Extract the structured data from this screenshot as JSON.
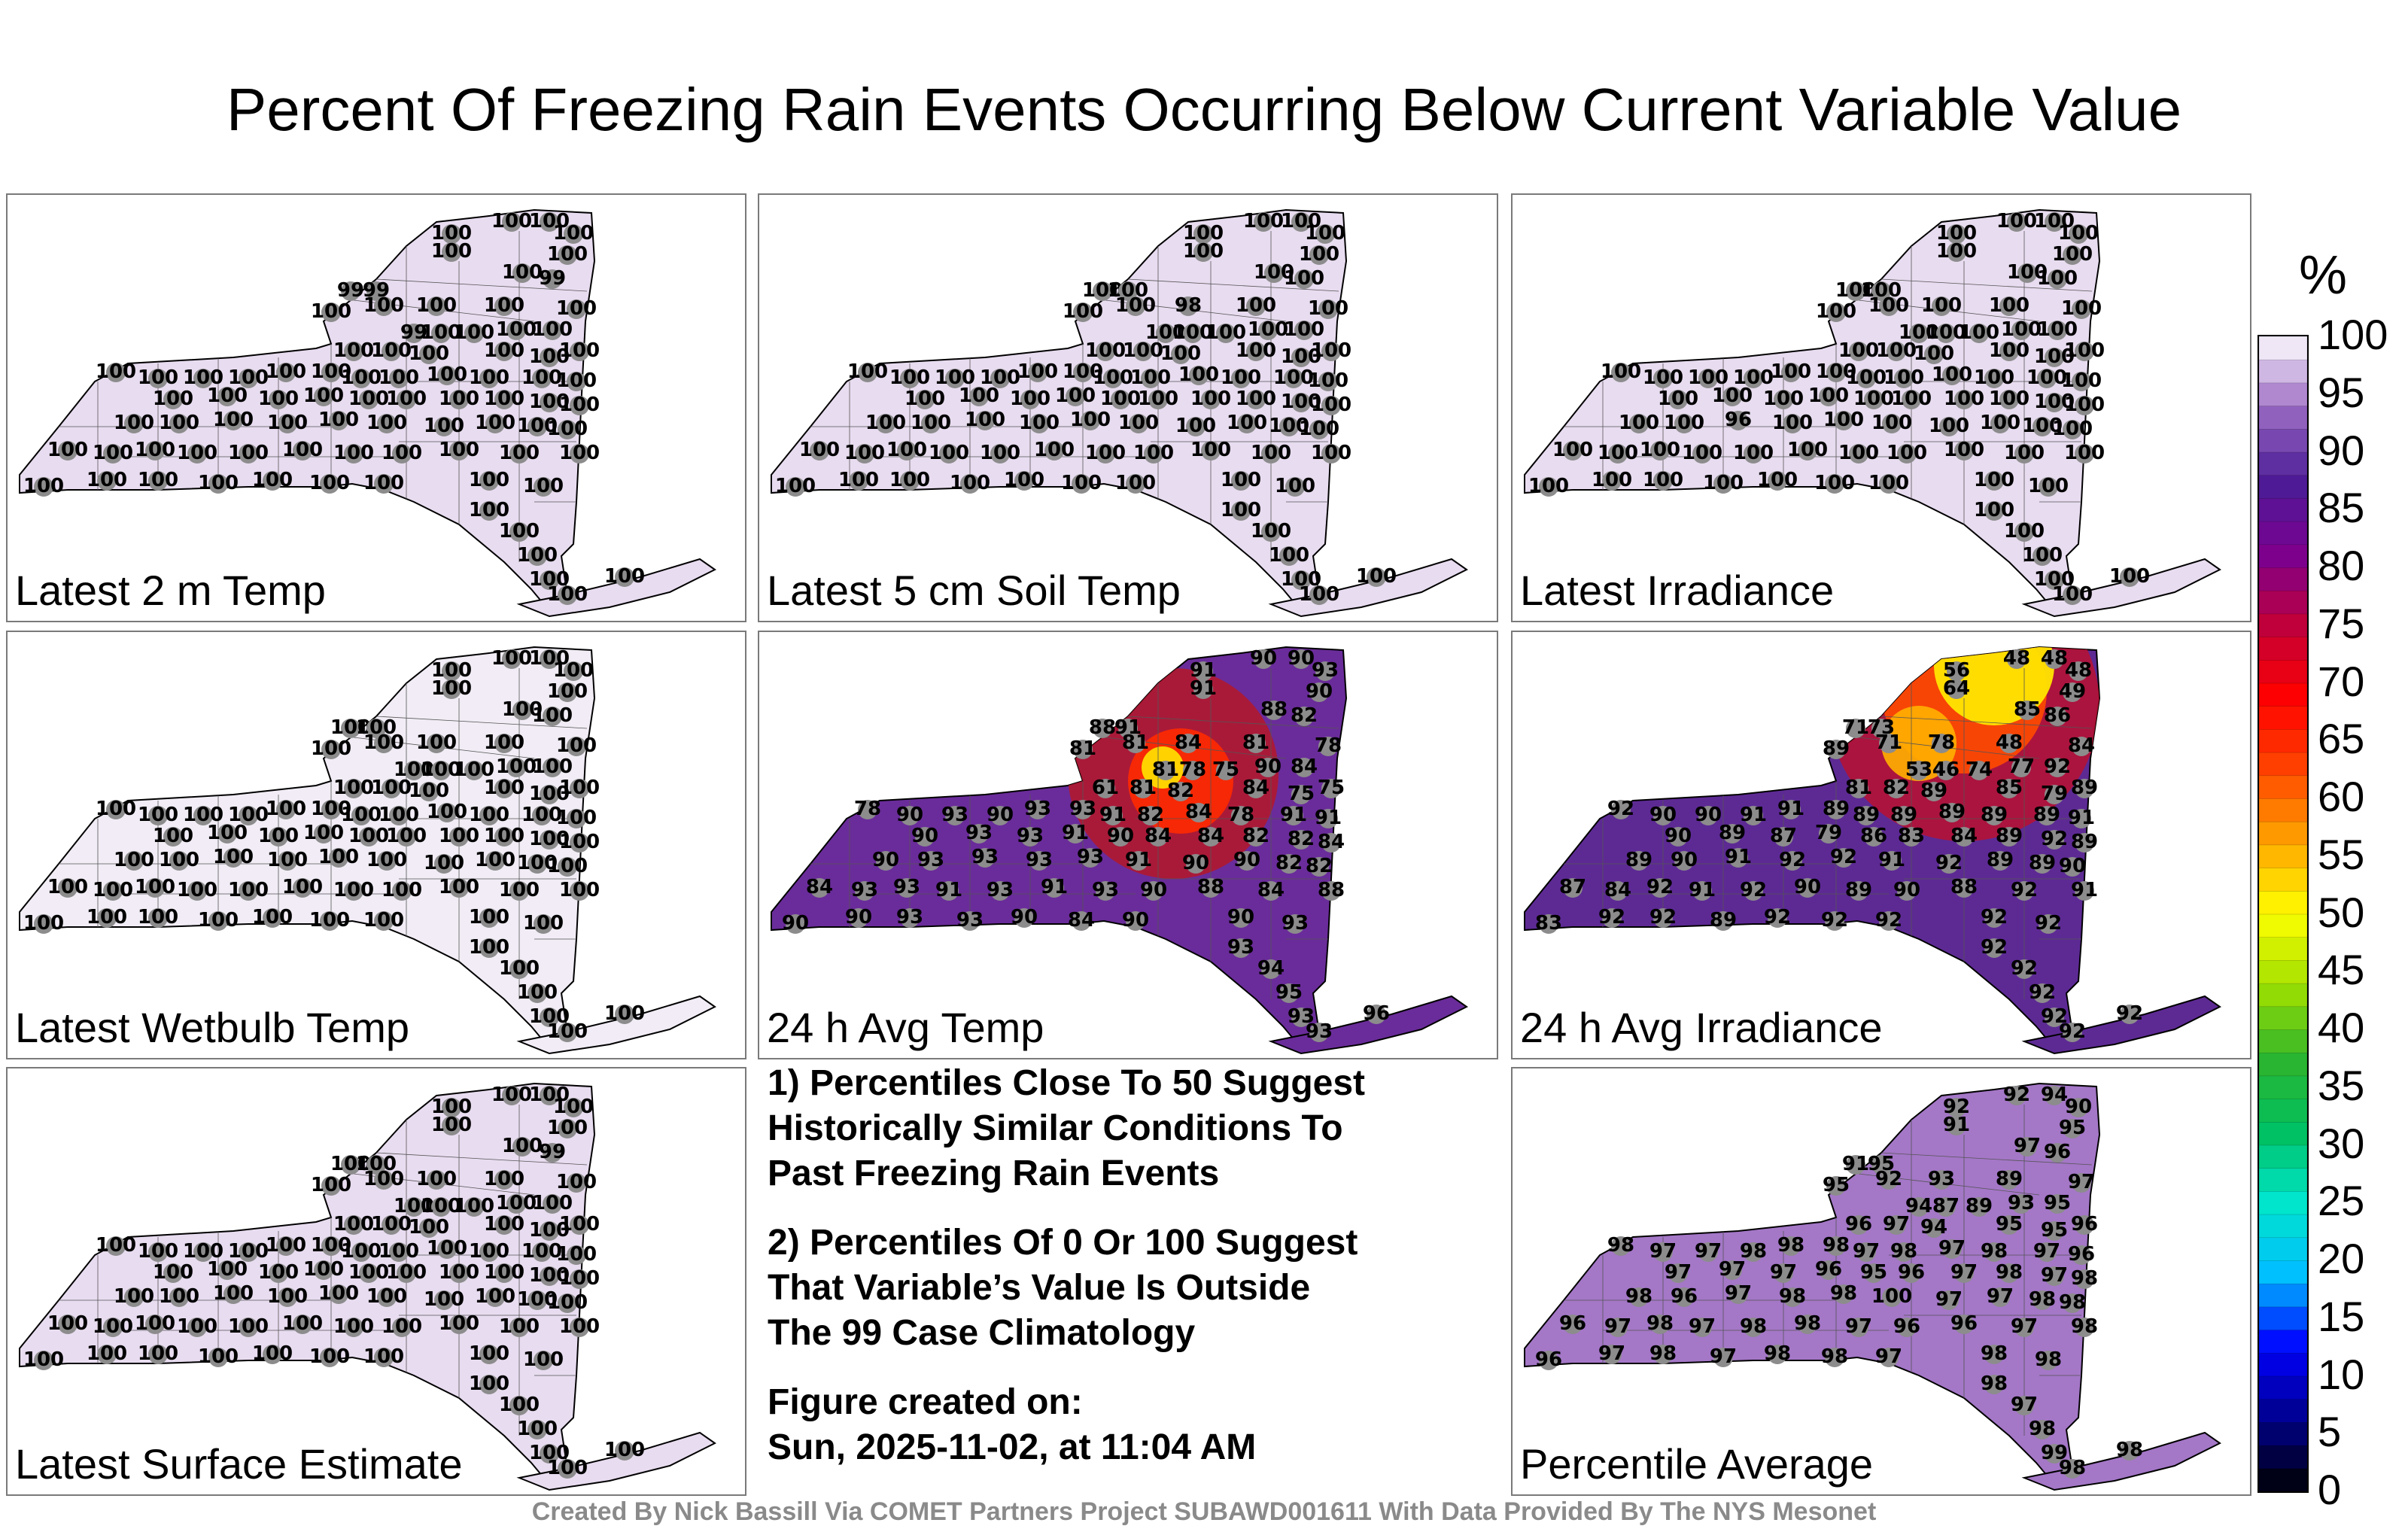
{
  "title": "Percent Of Freezing Rain Events Occurring Below Current Variable Value",
  "panels": [
    {
      "label": "Latest 2 m Temp",
      "fill": "#e8dcf0",
      "stations": [
        "100",
        "100",
        "100",
        "100",
        "100",
        "100",
        "99",
        "99",
        "100",
        "99",
        "100",
        "100",
        "100",
        "100",
        "99",
        "100",
        "100",
        "100",
        "100",
        "100",
        "100",
        "100",
        "100",
        "100",
        "100",
        "100",
        "100",
        "100",
        "100",
        "100",
        "100",
        "100",
        "100",
        "100",
        "100",
        "100",
        "100",
        "100",
        "100",
        "100",
        "100",
        "100",
        "100",
        "100",
        "100",
        "100",
        "100",
        "100",
        "100",
        "100",
        "100",
        "100",
        "100",
        "100",
        "100",
        "100",
        "100",
        "100",
        "100",
        "100",
        "100",
        "100",
        "100",
        "100",
        "100",
        "100",
        "100",
        "100",
        "100",
        "100",
        "100",
        "100",
        "100",
        "100",
        "100",
        "100",
        "100",
        "100",
        "100",
        "100",
        "100",
        "100",
        "100",
        "100"
      ]
    },
    {
      "label": "Latest 5 cm Soil Temp",
      "fill": "#e8dcf0",
      "stations": [
        "100",
        "100",
        "100",
        "100",
        "100",
        "100",
        "100",
        "100",
        "100",
        "100",
        "100",
        "100",
        "98",
        "100",
        "100",
        "100",
        "100",
        "100",
        "100",
        "100",
        "100",
        "100",
        "100",
        "100",
        "100",
        "100",
        "100",
        "100",
        "100",
        "100",
        "100",
        "100",
        "100",
        "100",
        "100",
        "100",
        "100",
        "100",
        "100",
        "100",
        "100",
        "100",
        "100",
        "100",
        "100",
        "100",
        "100",
        "100",
        "100",
        "100",
        "100",
        "100",
        "100",
        "100",
        "100",
        "100",
        "100",
        "100",
        "100",
        "100",
        "100",
        "100",
        "100",
        "100",
        "100",
        "100",
        "100",
        "100",
        "100",
        "100",
        "100",
        "100",
        "100",
        "100",
        "100",
        "100",
        "100",
        "100",
        "100",
        "100",
        "100",
        "100",
        "100",
        "100"
      ]
    },
    {
      "label": "Latest Irradiance",
      "fill": "#e8dcf0",
      "stations": [
        "100",
        "100",
        "100",
        "100",
        "100",
        "100",
        "100",
        "100",
        "100",
        "100",
        "100",
        "100",
        "100",
        "100",
        "100",
        "100",
        "100",
        "100",
        "100",
        "100",
        "100",
        "100",
        "100",
        "100",
        "100",
        "100",
        "100",
        "100",
        "100",
        "100",
        "100",
        "100",
        "100",
        "100",
        "100",
        "100",
        "100",
        "100",
        "100",
        "100",
        "100",
        "100",
        "100",
        "100",
        "100",
        "100",
        "100",
        "100",
        "100",
        "100",
        "96",
        "100",
        "100",
        "100",
        "100",
        "100",
        "100",
        "100",
        "100",
        "100",
        "100",
        "100",
        "100",
        "100",
        "100",
        "100",
        "100",
        "100",
        "100",
        "100",
        "100",
        "100",
        "100",
        "100",
        "100",
        "100",
        "100",
        "100",
        "100",
        "100",
        "100",
        "100",
        "100",
        "100"
      ]
    },
    {
      "label": "Latest Wetbulb Temp",
      "fill": "#f1ecf5",
      "stations": [
        "100",
        "100",
        "100",
        "100",
        "100",
        "100",
        "100",
        "100",
        "100",
        "100",
        "100",
        "100",
        "100",
        "100",
        "100",
        "100",
        "100",
        "100",
        "100",
        "100",
        "100",
        "100",
        "100",
        "100",
        "100",
        "100",
        "100",
        "100",
        "100",
        "100",
        "100",
        "100",
        "100",
        "100",
        "100",
        "100",
        "100",
        "100",
        "100",
        "100",
        "100",
        "100",
        "100",
        "100",
        "100",
        "100",
        "100",
        "100",
        "100",
        "100",
        "100",
        "100",
        "100",
        "100",
        "100",
        "100",
        "100",
        "100",
        "100",
        "100",
        "100",
        "100",
        "100",
        "100",
        "100",
        "100",
        "100",
        "100",
        "100",
        "100",
        "100",
        "100",
        "100",
        "100",
        "100",
        "100",
        "100",
        "100",
        "100",
        "100",
        "100",
        "100",
        "100",
        "100"
      ]
    },
    {
      "label": "24 h Avg Temp",
      "fill": "#6a2c9a",
      "stations": [
        "91",
        "91",
        "90",
        "90",
        "93",
        "90",
        "88",
        "91",
        "88",
        "82",
        "81",
        "81",
        "84",
        "81",
        "81",
        "78",
        "75",
        "90",
        "84",
        "78",
        "61",
        "81",
        "82",
        "84",
        "75",
        "75",
        "78",
        "90",
        "93",
        "90",
        "93",
        "93",
        "91",
        "82",
        "84",
        "78",
        "91",
        "91",
        "90",
        "93",
        "93",
        "91",
        "90",
        "84",
        "84",
        "82",
        "82",
        "84",
        "90",
        "93",
        "93",
        "93",
        "93",
        "91",
        "90",
        "90",
        "82",
        "82",
        "84",
        "93",
        "93",
        "91",
        "93",
        "91",
        "93",
        "90",
        "88",
        "84",
        "88",
        "90",
        "90",
        "93",
        "93",
        "90",
        "84",
        "90",
        "90",
        "93",
        "93",
        "94",
        "95",
        "93",
        "93",
        "96"
      ]
    },
    {
      "label": "24 h Avg Irradiance",
      "fill": "#5d2a94",
      "stations": [
        "56",
        "64",
        "48",
        "48",
        "48",
        "49",
        "71",
        "73",
        "85",
        "86",
        "89",
        "71",
        "78",
        "48",
        "53",
        "46",
        "74",
        "77",
        "92",
        "84",
        "81",
        "82",
        "89",
        "85",
        "79",
        "89",
        "92",
        "90",
        "90",
        "91",
        "91",
        "89",
        "89",
        "89",
        "89",
        "89",
        "89",
        "91",
        "90",
        "89",
        "87",
        "79",
        "86",
        "83",
        "84",
        "89",
        "92",
        "89",
        "89",
        "90",
        "91",
        "92",
        "92",
        "91",
        "92",
        "89",
        "89",
        "90",
        "87",
        "84",
        "92",
        "91",
        "92",
        "90",
        "89",
        "90",
        "88",
        "92",
        "91",
        "83",
        "92",
        "92",
        "89",
        "92",
        "92",
        "92",
        "92",
        "92",
        "92",
        "92",
        "92",
        "92",
        "92",
        "92"
      ]
    },
    {
      "label": "Latest Surface Estimate",
      "fill": "#e8dcf0",
      "stations": [
        "100",
        "100",
        "100",
        "100",
        "100",
        "100",
        "100",
        "100",
        "100",
        "99",
        "100",
        "100",
        "100",
        "100",
        "100",
        "100",
        "100",
        "100",
        "100",
        "100",
        "100",
        "100",
        "100",
        "100",
        "100",
        "100",
        "100",
        "100",
        "100",
        "100",
        "100",
        "100",
        "100",
        "100",
        "100",
        "100",
        "100",
        "100",
        "100",
        "100",
        "100",
        "100",
        "100",
        "100",
        "100",
        "100",
        "100",
        "100",
        "100",
        "100",
        "100",
        "100",
        "100",
        "100",
        "100",
        "100",
        "100",
        "100",
        "100",
        "100",
        "100",
        "100",
        "100",
        "100",
        "100",
        "100",
        "100",
        "100",
        "100",
        "100",
        "100",
        "100",
        "100",
        "100",
        "100",
        "100",
        "100",
        "100",
        "100",
        "100",
        "100",
        "100",
        "100",
        "100"
      ]
    },
    {
      "label": "Percentile Average",
      "fill": "#a477c7",
      "stations": [
        "92",
        "91",
        "92",
        "94",
        "90",
        "95",
        "91",
        "95",
        "97",
        "96",
        "95",
        "92",
        "93",
        "89",
        "94",
        "87",
        "89",
        "93",
        "95",
        "97",
        "96",
        "97",
        "94",
        "95",
        "95",
        "96",
        "98",
        "97",
        "97",
        "98",
        "98",
        "98",
        "97",
        "98",
        "97",
        "98",
        "97",
        "96",
        "97",
        "97",
        "97",
        "96",
        "95",
        "96",
        "97",
        "98",
        "97",
        "98",
        "98",
        "96",
        "97",
        "98",
        "98",
        "100",
        "97",
        "97",
        "98",
        "98",
        "96",
        "97",
        "98",
        "97",
        "98",
        "98",
        "97",
        "96",
        "96",
        "97",
        "98",
        "96",
        "97",
        "98",
        "97",
        "98",
        "98",
        "97",
        "98",
        "98",
        "98",
        "97",
        "98",
        "99",
        "98",
        "98"
      ]
    }
  ],
  "notes": {
    "note1": "1) Percentiles Close To 50 Suggest\nHistorically Similar Conditions To\nPast Freezing Rain Events",
    "note2": "2) Percentiles Of 0 Or 100 Suggest\nThat Variable’s Value Is Outside\nThe 99 Case Climatology",
    "note3": "Figure created on:\nSun, 2025-11-02, at 11:04 AM"
  },
  "credit": "Created By Nick Bassill Via COMET Partners Project SUBAWD001611 With Data Provided By The NYS Mesonet",
  "chart_data": {
    "type": "heatmap",
    "title": "Percent Of Freezing Rain Events Occurring Below Current Variable Value",
    "colorbar": {
      "unit": "%",
      "ticks": [
        "0",
        "5",
        "10",
        "15",
        "20",
        "25",
        "30",
        "35",
        "40",
        "45",
        "50",
        "55",
        "60",
        "65",
        "70",
        "75",
        "80",
        "85",
        "90",
        "95",
        "100"
      ],
      "range": [
        0,
        100
      ],
      "stops": [
        "#000000",
        "#00008b",
        "#0000ff",
        "#00bfff",
        "#00e5cc",
        "#00c060",
        "#2db42d",
        "#a0e000",
        "#ffff00",
        "#ffa500",
        "#ff4500",
        "#ff0000",
        "#c0003a",
        "#7a0090",
        "#4b1c96",
        "#9b6ac4",
        "#ffffff"
      ]
    }
  }
}
